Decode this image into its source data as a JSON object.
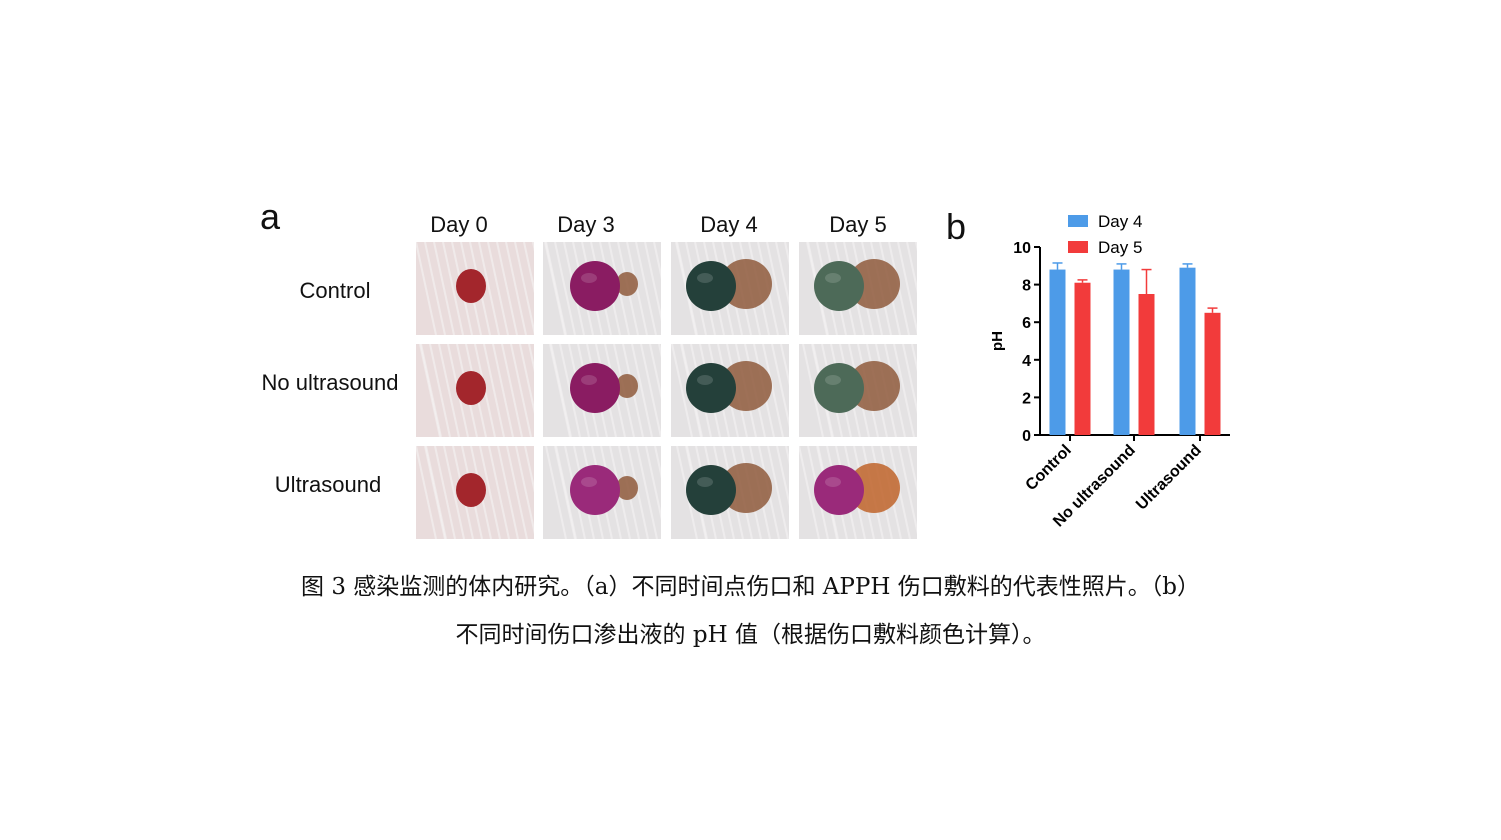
{
  "panel_a": {
    "letter": "a",
    "columns": [
      "Day 0",
      "Day 3",
      "Day 4",
      "Day 5"
    ],
    "rows": [
      "Control",
      "No ultrasound",
      "Ultrasound"
    ]
  },
  "panel_b": {
    "letter": "b"
  },
  "chart_data": {
    "type": "bar",
    "categories": [
      "Control",
      "No ultrasound",
      "Ultrasound"
    ],
    "series": [
      {
        "name": "Day 4",
        "values": [
          8.8,
          8.8,
          8.9
        ],
        "errors": [
          0.35,
          0.3,
          0.2
        ],
        "color": "#4d9be8"
      },
      {
        "name": "Day 5",
        "values": [
          8.1,
          7.5,
          6.5
        ],
        "errors": [
          0.15,
          1.3,
          0.25
        ],
        "color": "#f23b3b"
      }
    ],
    "ylabel": "pH",
    "ylim": [
      0,
      10
    ],
    "yticks": [
      0,
      2,
      4,
      6,
      8,
      10
    ],
    "legend_position": "top",
    "grid": false
  },
  "caption": {
    "line1": "图 3 感染监测的体内研究。（a）不同时间点伤口和 APPH 伤口敷料的代表性照片。（b）",
    "line2": "不同时间伤口渗出液的 pH 值（根据伤口敷料颜色计算）。"
  },
  "photo_colors": {
    "skin": "#e9dcdc",
    "wound": "#a3262c",
    "purple": "#8a1c62",
    "magenta": "#9a2a7a",
    "dark_green": "#24403a",
    "green_grey": "#4d6a58",
    "brown": "#8f5a3c",
    "orange": "#c0642a"
  }
}
